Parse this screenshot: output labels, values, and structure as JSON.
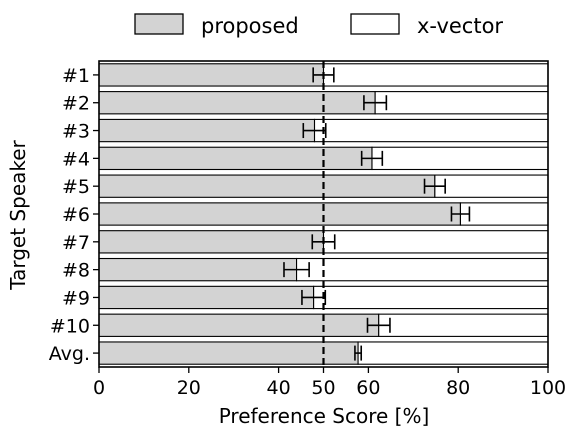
{
  "chart_data": {
    "type": "bar",
    "orientation": "horizontal",
    "stacked": true,
    "categories": [
      "#1",
      "#2",
      "#3",
      "#4",
      "#5",
      "#6",
      "#7",
      "#8",
      "#9",
      "#10",
      "Avg."
    ],
    "series": [
      {
        "name": "proposed",
        "color": "#d3d3d3",
        "values": [
          50.0,
          61.5,
          48.0,
          60.8,
          74.8,
          80.5,
          50.0,
          44.0,
          47.8,
          62.3,
          57.7
        ],
        "error": [
          2.3,
          2.5,
          2.5,
          2.3,
          2.3,
          2.0,
          2.5,
          2.8,
          2.6,
          2.5,
          0.7
        ]
      },
      {
        "name": "x-vector",
        "color": "#ffffff",
        "values": [
          50.0,
          38.5,
          52.0,
          39.2,
          25.2,
          19.5,
          50.0,
          56.0,
          52.2,
          37.7,
          42.3
        ]
      }
    ],
    "reference_line": {
      "x": 50,
      "style": "dashed"
    },
    "xlabel": "Preference Score [%]",
    "ylabel": "Target Speaker",
    "xlim": [
      0,
      100
    ],
    "xticks": [
      "0",
      "20",
      "40",
      "50",
      "60",
      "80",
      "100"
    ],
    "xtick_values": [
      0,
      20,
      40,
      50,
      60,
      80,
      100
    ],
    "legend_position": "top-center"
  }
}
